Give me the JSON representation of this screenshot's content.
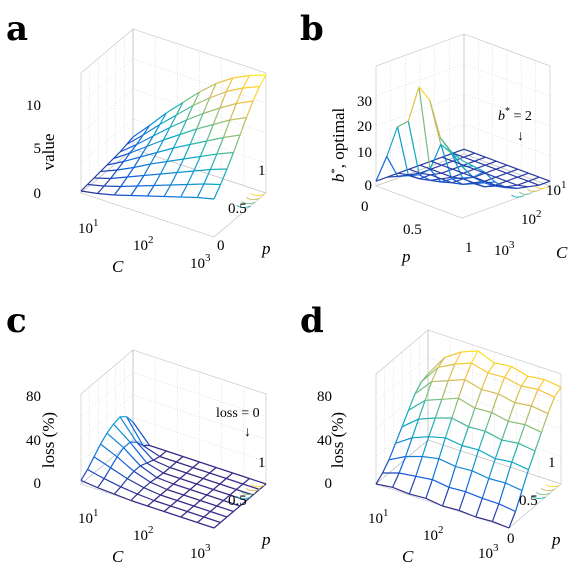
{
  "figure": {
    "panels": [
      {
        "letter": "a"
      },
      {
        "letter": "b"
      },
      {
        "letter": "c"
      },
      {
        "letter": "d"
      }
    ]
  },
  "colors": {
    "colormap": [
      "#352a87",
      "#0f5cdd",
      "#1481d6",
      "#06a4ca",
      "#2eb7a4",
      "#87bf77",
      "#d1bb59",
      "#fec832",
      "#f9fb0e"
    ],
    "box": "#bfbfbf"
  },
  "chart_data": [
    {
      "type": "surface",
      "panel": "a",
      "xlabel": "C",
      "ylabel": "p",
      "zlabel": "value",
      "x_scale": "log",
      "x_ticklabels": [
        "10",
        "10",
        "10"
      ],
      "x_tick_exponents": [
        "1",
        "2",
        "3"
      ],
      "y_ticklabels": [
        "0",
        "0.5",
        "1"
      ],
      "z_ticklabels": [
        "0",
        "5",
        "10"
      ],
      "zlim": [
        0,
        12
      ],
      "p": [
        0.0,
        0.125,
        0.25,
        0.375,
        0.5,
        0.625,
        0.75,
        0.875,
        1.0
      ],
      "C": [
        10,
        20,
        40,
        80,
        160,
        320,
        640,
        1280,
        2000
      ],
      "z": [
        [
          0.2,
          0.5,
          0.9,
          1.4,
          1.9,
          2.4,
          2.9,
          3.4,
          3.8
        ],
        [
          0.3,
          0.7,
          1.2,
          1.8,
          2.4,
          3.0,
          3.6,
          4.2,
          4.7
        ],
        [
          0.4,
          0.9,
          1.6,
          2.3,
          3.0,
          3.7,
          4.4,
          5.1,
          5.7
        ],
        [
          0.5,
          1.2,
          2.0,
          2.9,
          3.7,
          4.5,
          5.3,
          6.1,
          6.8
        ],
        [
          0.6,
          1.5,
          2.5,
          3.5,
          4.5,
          5.4,
          6.3,
          7.2,
          8.0
        ],
        [
          0.7,
          1.8,
          3.0,
          4.2,
          5.3,
          6.4,
          7.4,
          8.4,
          9.2
        ],
        [
          0.8,
          2.1,
          3.5,
          4.9,
          6.2,
          7.4,
          8.5,
          9.5,
          10.3
        ],
        [
          1.0,
          2.5,
          4.1,
          5.6,
          7.1,
          8.4,
          9.6,
          10.5,
          11.2
        ],
        [
          1.2,
          2.9,
          4.7,
          6.3,
          7.9,
          9.3,
          10.4,
          11.2,
          11.8
        ]
      ]
    },
    {
      "type": "surface",
      "panel": "b",
      "xlabel": "p",
      "ylabel": "C",
      "zlabel": "b*, optimal",
      "zlabel_main": "b",
      "zlabel_sup": "*",
      "zlabel_rest": ", optimal",
      "x_ticklabels": [
        "0",
        "0.5",
        "1"
      ],
      "y_scale": "log",
      "y_ticklabels": [
        "10",
        "10",
        "10"
      ],
      "y_tick_exponents": [
        "1",
        "2",
        "3"
      ],
      "z_ticklabels": [
        "0",
        "10",
        "20",
        "30"
      ],
      "zlim": [
        0,
        50
      ],
      "annotation": {
        "text_main": "b",
        "text_sup": "*",
        "text_rest": " = 2",
        "arrow": "↓"
      },
      "p": [
        0.0,
        0.125,
        0.25,
        0.375,
        0.5,
        0.625,
        0.75,
        0.875,
        1.0
      ],
      "C": [
        10,
        20,
        40,
        80,
        160,
        320,
        640,
        1280,
        2000
      ],
      "z": [
        [
          2,
          2,
          2,
          2,
          2,
          2,
          2,
          2,
          2
        ],
        [
          14,
          4,
          3,
          2,
          2,
          2,
          2,
          2,
          2
        ],
        [
          28,
          6,
          3,
          3,
          2,
          2,
          2,
          2,
          2
        ],
        [
          32,
          8,
          4,
          3,
          2,
          2,
          2,
          2,
          2
        ],
        [
          48,
          12,
          5,
          3,
          3,
          2,
          2,
          2,
          2
        ],
        [
          44,
          24,
          8,
          4,
          3,
          2,
          2,
          2,
          2
        ],
        [
          30,
          22,
          10,
          6,
          3,
          2,
          2,
          2,
          2
        ],
        [
          26,
          18,
          12,
          8,
          5,
          3,
          2,
          2,
          2
        ],
        [
          24,
          20,
          16,
          10,
          6,
          4,
          3,
          2,
          2
        ]
      ]
    },
    {
      "type": "surface",
      "panel": "c",
      "xlabel": "C",
      "ylabel": "p",
      "zlabel": "loss (%)",
      "x_scale": "log",
      "x_ticklabels": [
        "10",
        "10",
        "10"
      ],
      "x_tick_exponents": [
        "1",
        "2",
        "3"
      ],
      "y_ticklabels": [
        "0.5",
        "1"
      ],
      "z_ticklabels": [
        "0",
        "40",
        "80"
      ],
      "zlim": [
        0,
        100
      ],
      "annotation": {
        "text": "loss = 0",
        "arrow": "↓"
      },
      "p": [
        0.0,
        0.125,
        0.25,
        0.375,
        0.5,
        0.625,
        0.75,
        0.875,
        1.0
      ],
      "C": [
        10,
        20,
        40,
        80,
        160,
        320,
        640,
        1280,
        2000
      ],
      "z": [
        [
          4,
          2,
          1,
          0,
          0,
          0,
          0,
          0,
          0
        ],
        [
          10,
          6,
          3,
          1,
          0,
          0,
          0,
          0,
          0
        ],
        [
          18,
          12,
          6,
          2,
          0,
          0,
          0,
          0,
          0
        ],
        [
          26,
          18,
          8,
          2,
          0,
          0,
          0,
          0,
          0
        ],
        [
          32,
          22,
          8,
          1,
          0,
          0,
          0,
          0,
          0
        ],
        [
          36,
          22,
          5,
          0,
          0,
          0,
          0,
          0,
          0
        ],
        [
          38,
          16,
          2,
          0,
          0,
          0,
          0,
          0,
          0
        ],
        [
          32,
          6,
          0,
          0,
          0,
          0,
          0,
          0,
          0
        ],
        [
          20,
          0,
          0,
          0,
          0,
          0,
          0,
          0,
          0
        ]
      ]
    },
    {
      "type": "surface",
      "panel": "d",
      "xlabel": "C",
      "ylabel": "p",
      "zlabel": "loss (%)",
      "x_scale": "log",
      "x_ticklabels": [
        "10",
        "10",
        "10"
      ],
      "x_tick_exponents": [
        "1",
        "2",
        "3"
      ],
      "y_ticklabels": [
        "0",
        "0.5",
        "1"
      ],
      "z_ticklabels": [
        "0",
        "40",
        "80"
      ],
      "zlim": [
        0,
        100
      ],
      "p": [
        0.0,
        0.125,
        0.25,
        0.375,
        0.5,
        0.625,
        0.75,
        0.875,
        1.0
      ],
      "C": [
        10,
        20,
        40,
        80,
        160,
        320,
        640,
        1280,
        2000
      ],
      "z": [
        [
          0,
          2,
          1,
          2,
          0,
          1,
          0,
          1,
          0
        ],
        [
          5,
          10,
          12,
          14,
          12,
          13,
          12,
          12,
          10
        ],
        [
          12,
          20,
          25,
          28,
          26,
          27,
          25,
          26,
          24
        ],
        [
          22,
          32,
          38,
          42,
          40,
          41,
          38,
          40,
          38
        ],
        [
          32,
          44,
          50,
          55,
          52,
          53,
          50,
          52,
          50
        ],
        [
          42,
          56,
          62,
          68,
          64,
          65,
          62,
          64,
          62
        ],
        [
          52,
          68,
          74,
          80,
          76,
          77,
          74,
          76,
          74
        ],
        [
          58,
          76,
          84,
          90,
          86,
          87,
          84,
          86,
          84
        ],
        [
          60,
          80,
          90,
          96,
          90,
          92,
          88,
          90,
          88
        ]
      ]
    }
  ]
}
